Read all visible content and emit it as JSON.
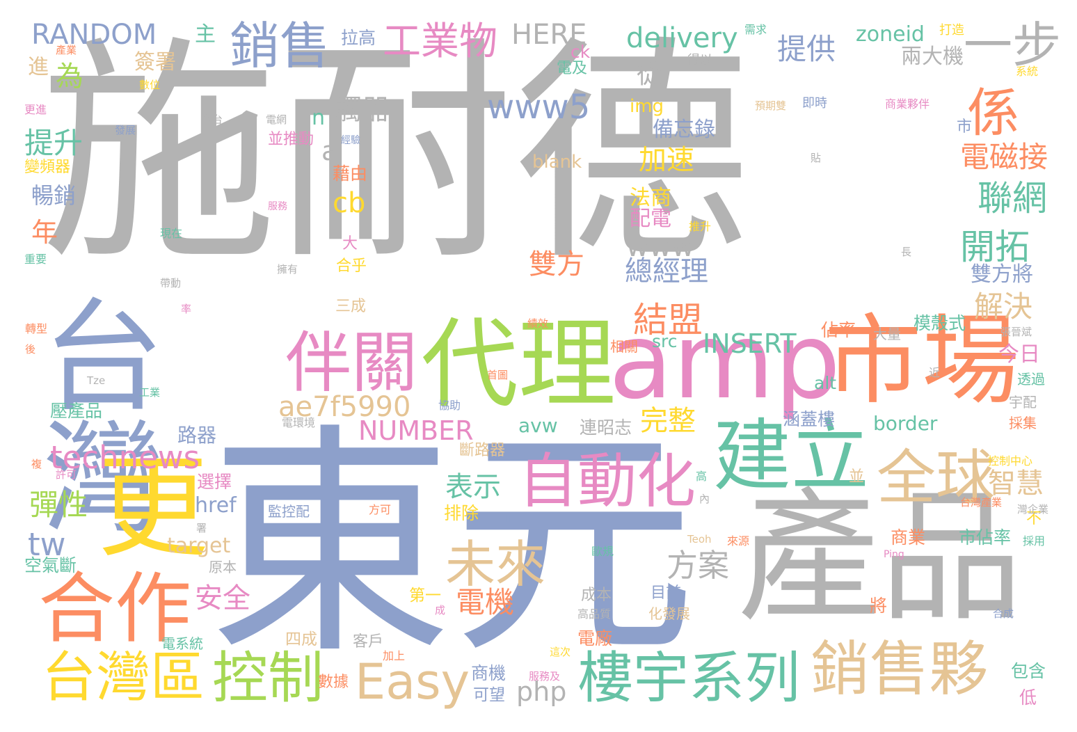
{
  "words": [
    {
      "text": "施耐德",
      "color": "#b3b3b3"
    },
    {
      "text": "東元",
      "color": "#8da0cb"
    },
    {
      "text": "台灣",
      "color": "#8da0cb"
    },
    {
      "text": "產品",
      "color": "#b3b3b3"
    },
    {
      "text": "amp",
      "color": "#e78ac3"
    },
    {
      "text": "市場",
      "color": "#fc8d62"
    },
    {
      "text": "代理",
      "color": "#a6d854"
    },
    {
      "text": "更",
      "color": "#ffd92f"
    },
    {
      "text": "合作",
      "color": "#fc8d62"
    },
    {
      "text": "建立",
      "color": "#66c2a5"
    },
    {
      "text": "伴關",
      "color": "#e78ac3"
    },
    {
      "text": "自動化",
      "color": "#e78ac3"
    },
    {
      "text": "全球",
      "color": "#e5c494"
    },
    {
      "text": "銷售夥",
      "color": "#e5c494"
    },
    {
      "text": "樓宇系列",
      "color": "#66c2a5"
    },
    {
      "text": "台灣區",
      "color": "#ffd92f"
    },
    {
      "text": "控制",
      "color": "#a6d854"
    },
    {
      "text": "Easy",
      "color": "#e5c494"
    },
    {
      "text": "未來",
      "color": "#e5c494"
    },
    {
      "text": "銷售",
      "color": "#8da0cb"
    },
    {
      "text": "工業物",
      "color": "#e78ac3"
    },
    {
      "text": "一步",
      "color": "#b3b3b3"
    },
    {
      "text": "係",
      "color": "#fc8d62"
    },
    {
      "text": "www5",
      "color": "#8da0cb"
    },
    {
      "text": "technews",
      "color": "#e78ac3"
    },
    {
      "text": "ae7f5990",
      "color": "#e5c494"
    },
    {
      "text": "delivery",
      "color": "#66c2a5"
    },
    {
      "text": "RANDOM",
      "color": "#8da0cb"
    },
    {
      "text": "HERE",
      "color": "#b3b3b3"
    },
    {
      "text": "INSERT",
      "color": "#66c2a5"
    },
    {
      "text": "NUMBER",
      "color": "#e78ac3"
    },
    {
      "text": "結盟",
      "color": "#fc8d62"
    },
    {
      "text": "www",
      "color": "#b3b3b3"
    },
    {
      "text": "總經理",
      "color": "#8da0cb"
    },
    {
      "text": "雙方",
      "color": "#fc8d62"
    },
    {
      "text": "開拓",
      "color": "#66c2a5"
    },
    {
      "text": "聯網",
      "color": "#66c2a5"
    },
    {
      "text": "電磁接",
      "color": "#fc8d62"
    },
    {
      "text": "解決",
      "color": "#e5c494"
    },
    {
      "text": "提供",
      "color": "#8da0cb"
    },
    {
      "text": "方案",
      "color": "#b3b3b3"
    },
    {
      "text": "完整",
      "color": "#ffd92f"
    },
    {
      "text": "表示",
      "color": "#66c2a5"
    },
    {
      "text": "安全",
      "color": "#e78ac3"
    },
    {
      "text": "電機",
      "color": "#fc8d62"
    },
    {
      "text": "智慧",
      "color": "#e5c494"
    },
    {
      "text": "提升",
      "color": "#66c2a5"
    },
    {
      "text": "彈性",
      "color": "#a6d854"
    },
    {
      "text": "觸器",
      "color": "#b3b3b3"
    },
    {
      "text": "為",
      "color": "#a6d854"
    },
    {
      "text": "加速",
      "color": "#ffd92f"
    },
    {
      "text": "tw",
      "color": "#8da0cb"
    },
    {
      "text": "php",
      "color": "#b3b3b3"
    },
    {
      "text": "cb",
      "color": "#ffd92f"
    },
    {
      "text": "zoneid",
      "color": "#66c2a5"
    },
    {
      "text": "兩大機",
      "color": "#b3b3b3"
    },
    {
      "text": "雙方將",
      "color": "#8da0cb"
    },
    {
      "text": "今日",
      "color": "#e78ac3"
    },
    {
      "text": "市佔率",
      "color": "#66c2a5"
    },
    {
      "text": "border",
      "color": "#66c2a5"
    },
    {
      "text": "備忘錄",
      "color": "#8da0cb"
    },
    {
      "text": "法商",
      "color": "#ffd92f"
    },
    {
      "text": "配電",
      "color": "#e78ac3"
    },
    {
      "text": "年",
      "color": "#fc8d62"
    },
    {
      "text": "暢銷",
      "color": "#8da0cb"
    },
    {
      "text": "簽署",
      "color": "#e5c494"
    },
    {
      "text": "從",
      "color": "#b3b3b3"
    },
    {
      "text": "a",
      "color": "#b3b3b3"
    },
    {
      "text": "n",
      "color": "#66c2a5"
    },
    {
      "text": "img",
      "color": "#ffd92f"
    },
    {
      "text": "blank",
      "color": "#e5c494"
    },
    {
      "text": "src",
      "color": "#66c2a5"
    },
    {
      "text": "alt",
      "color": "#66c2a5"
    },
    {
      "text": "avw",
      "color": "#66c2a5"
    },
    {
      "text": "href",
      "color": "#8da0cb"
    },
    {
      "text": "target",
      "color": "#e5c494"
    },
    {
      "text": "路器",
      "color": "#8da0cb"
    },
    {
      "text": "選擇",
      "color": "#e78ac3"
    },
    {
      "text": "排除",
      "color": "#ffd92f"
    },
    {
      "text": "連昭志",
      "color": "#b3b3b3"
    },
    {
      "text": "斷路器",
      "color": "#e5c494"
    },
    {
      "text": "涵蓋樓",
      "color": "#8da0cb"
    },
    {
      "text": "模殼式",
      "color": "#66c2a5"
    },
    {
      "text": "佔率",
      "color": "#fc8d62"
    },
    {
      "text": "相關",
      "color": "#fc8d62"
    },
    {
      "text": "大量",
      "color": "#b3b3b3"
    },
    {
      "text": "透過",
      "color": "#66c2a5"
    },
    {
      "text": "宇配",
      "color": "#b3b3b3"
    },
    {
      "text": "採集",
      "color": "#fc8d62"
    },
    {
      "text": "商業",
      "color": "#fc8d62"
    },
    {
      "text": "不",
      "color": "#ffd92f"
    },
    {
      "text": "第一",
      "color": "#ffd92f"
    },
    {
      "text": "目前",
      "color": "#8da0cb"
    },
    {
      "text": "化發展",
      "color": "#e5c494"
    },
    {
      "text": "成本",
      "color": "#b3b3b3"
    },
    {
      "text": "電廠",
      "color": "#fc8d62"
    },
    {
      "text": "商機",
      "color": "#8da0cb"
    },
    {
      "text": "可望",
      "color": "#8da0cb"
    },
    {
      "text": "客戶",
      "color": "#b3b3b3"
    },
    {
      "text": "四成",
      "color": "#e5c494"
    },
    {
      "text": "原本",
      "color": "#b3b3b3"
    },
    {
      "text": "空氣斷",
      "color": "#66c2a5"
    },
    {
      "text": "壓產品",
      "color": "#66c2a5"
    },
    {
      "text": "三成",
      "color": "#e5c494"
    },
    {
      "text": "合乎",
      "color": "#ffd92f"
    },
    {
      "text": "大",
      "color": "#e78ac3"
    },
    {
      "text": "藉由",
      "color": "#fc8d62"
    },
    {
      "text": "拉高",
      "color": "#8da0cb"
    },
    {
      "text": "電及",
      "color": "#66c2a5"
    },
    {
      "text": "主",
      "color": "#66c2a5"
    },
    {
      "text": "進",
      "color": "#e5c494"
    },
    {
      "text": "並推動",
      "color": "#e78ac3"
    },
    {
      "text": "市",
      "color": "#8da0cb"
    },
    {
      "text": "將",
      "color": "#fc8d62"
    },
    {
      "text": "包含",
      "color": "#66c2a5"
    },
    {
      "text": "低",
      "color": "#e78ac3"
    },
    {
      "text": "數據",
      "color": "#fc8d62"
    },
    {
      "text": "變頻器",
      "color": "#ffd92f"
    },
    {
      "text": "ck",
      "color": "#e78ac3"
    },
    {
      "text": "需求",
      "color": "#66c2a5"
    },
    {
      "text": "打造",
      "color": "#ffd92f"
    },
    {
      "text": "得以",
      "color": "#b3b3b3"
    },
    {
      "text": "系統",
      "color": "#ffd92f"
    },
    {
      "text": "商業夥伴",
      "color": "#e78ac3"
    },
    {
      "text": "預期雙",
      "color": "#e5c494"
    },
    {
      "text": "即時",
      "color": "#8da0cb"
    },
    {
      "text": "貼",
      "color": "#b3b3b3"
    },
    {
      "text": "推升",
      "color": "#ffd92f"
    },
    {
      "text": "長",
      "color": "#b3b3b3"
    },
    {
      "text": "張晉斌",
      "color": "#b3b3b3"
    },
    {
      "text": "近",
      "color": "#b3b3b3"
    },
    {
      "text": "首圖",
      "color": "#fc8d62"
    },
    {
      "text": "協助",
      "color": "#8da0cb"
    },
    {
      "text": "電環境",
      "color": "#b3b3b3"
    },
    {
      "text": "監控配",
      "color": "#8da0cb"
    },
    {
      "text": "方可",
      "color": "#fc8d62"
    },
    {
      "text": "IT",
      "color": "#8da0cb"
    },
    {
      "text": "內",
      "color": "#b3b3b3"
    },
    {
      "text": "高",
      "color": "#66c2a5"
    },
    {
      "text": "台灣產業",
      "color": "#fc8d62"
    },
    {
      "text": "灣企業",
      "color": "#b3b3b3"
    },
    {
      "text": "控制中心",
      "color": "#ffd92f"
    },
    {
      "text": "採用",
      "color": "#66c2a5"
    },
    {
      "text": "並",
      "color": "#e5c494"
    },
    {
      "text": "Teoh",
      "color": "#e5c494"
    },
    {
      "text": "來源",
      "color": "#fc8d62"
    },
    {
      "text": "Ping",
      "color": "#e78ac3"
    },
    {
      "text": "歐規",
      "color": "#66c2a5"
    },
    {
      "text": "高品質",
      "color": "#b3b3b3"
    },
    {
      "text": "合成",
      "color": "#8da0cb"
    },
    {
      "text": "成",
      "color": "#e78ac3"
    },
    {
      "text": "加上",
      "color": "#fc8d62"
    },
    {
      "text": "這次",
      "color": "#ffd92f"
    },
    {
      "text": "服務及",
      "color": "#e78ac3"
    },
    {
      "text": "電系統",
      "color": "#66c2a5"
    },
    {
      "text": "署",
      "color": "#b3b3b3"
    },
    {
      "text": "許可",
      "color": "#e78ac3"
    },
    {
      "text": "複",
      "color": "#fc8d62"
    },
    {
      "text": "工業",
      "color": "#66c2a5"
    },
    {
      "text": "Tze",
      "color": "#b3b3b3"
    },
    {
      "text": "後",
      "color": "#fc8d62"
    },
    {
      "text": "轉型",
      "color": "#fc8d62"
    },
    {
      "text": "率",
      "color": "#e78ac3"
    },
    {
      "text": "帶動",
      "color": "#b3b3b3"
    },
    {
      "text": "重要",
      "color": "#66c2a5"
    },
    {
      "text": "現在",
      "color": "#66c2a5"
    },
    {
      "text": "擁有",
      "color": "#b3b3b3"
    },
    {
      "text": "服務",
      "color": "#e78ac3"
    },
    {
      "text": "經驗",
      "color": "#8da0cb"
    },
    {
      "text": "發展",
      "color": "#8da0cb"
    },
    {
      "text": "多台",
      "color": "#b3b3b3"
    },
    {
      "text": "電網",
      "color": "#b3b3b3"
    },
    {
      "text": "數位",
      "color": "#ffd92f"
    },
    {
      "text": "更進",
      "color": "#e78ac3"
    },
    {
      "text": "產業",
      "color": "#fc8d62"
    },
    {
      "text": "績效",
      "color": "#fc8d62"
    }
  ]
}
